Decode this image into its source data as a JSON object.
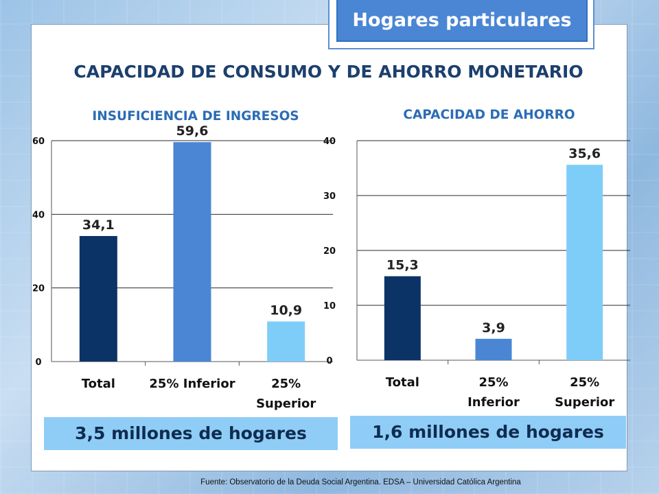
{
  "badge": "Hogares particulares",
  "title": "CAPACIDAD DE CONSUMO Y DE AHORRO MONETARIO",
  "source": "Fuente:  Observatorio de  la Deuda Social Argentina. EDSA  – Universidad Católica Argentina",
  "colors": {
    "bar_total": "#0c3366",
    "bar_inferior": "#4a86d4",
    "bar_superior": "#7ecdf9",
    "title": "#1c3f6e",
    "subtitle": "#2b6cb5",
    "box": "#8fcdf7"
  },
  "chart_data": [
    {
      "type": "bar",
      "title": "INSUFICIENCIA DE INGRESOS",
      "categories": [
        [
          "Total"
        ],
        [
          "25% Inferior"
        ],
        [
          "25%",
          "Superior"
        ]
      ],
      "values": [
        34.1,
        59.6,
        10.9
      ],
      "value_labels": [
        "34,1",
        "59,6",
        "10,9"
      ],
      "ylim": [
        0,
        60
      ],
      "yticks": [
        0,
        20,
        40,
        60
      ],
      "grid": true,
      "footer": "3,5 millones de hogares"
    },
    {
      "type": "bar",
      "title": "CAPACIDAD DE AHORRO",
      "categories": [
        [
          "Total"
        ],
        [
          "25%",
          "Inferior"
        ],
        [
          "25%",
          "Superior"
        ]
      ],
      "values": [
        15.3,
        3.9,
        35.6
      ],
      "value_labels": [
        "15,3",
        "3,9",
        "35,6"
      ],
      "ylim": [
        0,
        40
      ],
      "yticks": [
        0,
        10,
        20,
        30,
        40
      ],
      "grid": true,
      "footer": "1,6 millones de hogares"
    }
  ]
}
